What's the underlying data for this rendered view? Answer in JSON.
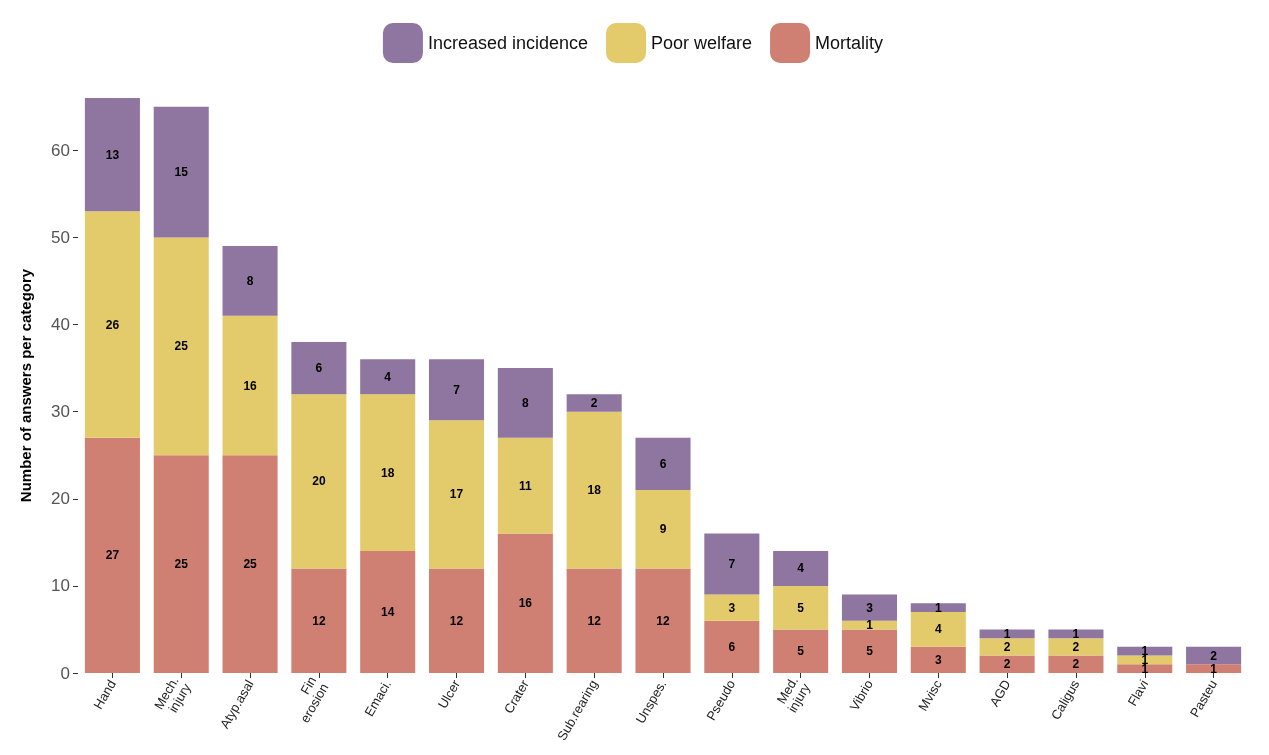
{
  "chart_data": {
    "type": "bar",
    "stacked": true,
    "ylabel": "Number of answers per category",
    "categories": [
      "Hand",
      "Mech.\ninjury",
      "Atyp.asal",
      "Fin\nerosion",
      "Emaci.",
      "Ulcer",
      "Crater",
      "Sub.rearing",
      "Unspes.",
      "Pseudo",
      "Med.\ninjury",
      "Vibrio",
      "Mvisc",
      "AGD",
      "Caligus",
      "Flavi",
      "Pasteu"
    ],
    "series": [
      {
        "name": "Mortality",
        "color": "#d07f73",
        "values": [
          27,
          25,
          25,
          12,
          14,
          12,
          16,
          12,
          12,
          6,
          5,
          5,
          3,
          2,
          2,
          1,
          1
        ]
      },
      {
        "name": "Poor welfare",
        "color": "#e3cb6b",
        "values": [
          26,
          25,
          16,
          20,
          18,
          17,
          11,
          18,
          9,
          3,
          5,
          1,
          4,
          2,
          2,
          1,
          null
        ]
      },
      {
        "name": "Increased incidence",
        "color": "#8e76a0",
        "values": [
          13,
          15,
          8,
          6,
          4,
          7,
          8,
          2,
          6,
          7,
          4,
          3,
          1,
          1,
          1,
          1,
          2
        ]
      }
    ],
    "ylim": [
      0,
      66
    ],
    "yticks": [
      0,
      10,
      20,
      30,
      40,
      50,
      60
    ],
    "grid": false,
    "legend": "top",
    "data_labels": true
  }
}
